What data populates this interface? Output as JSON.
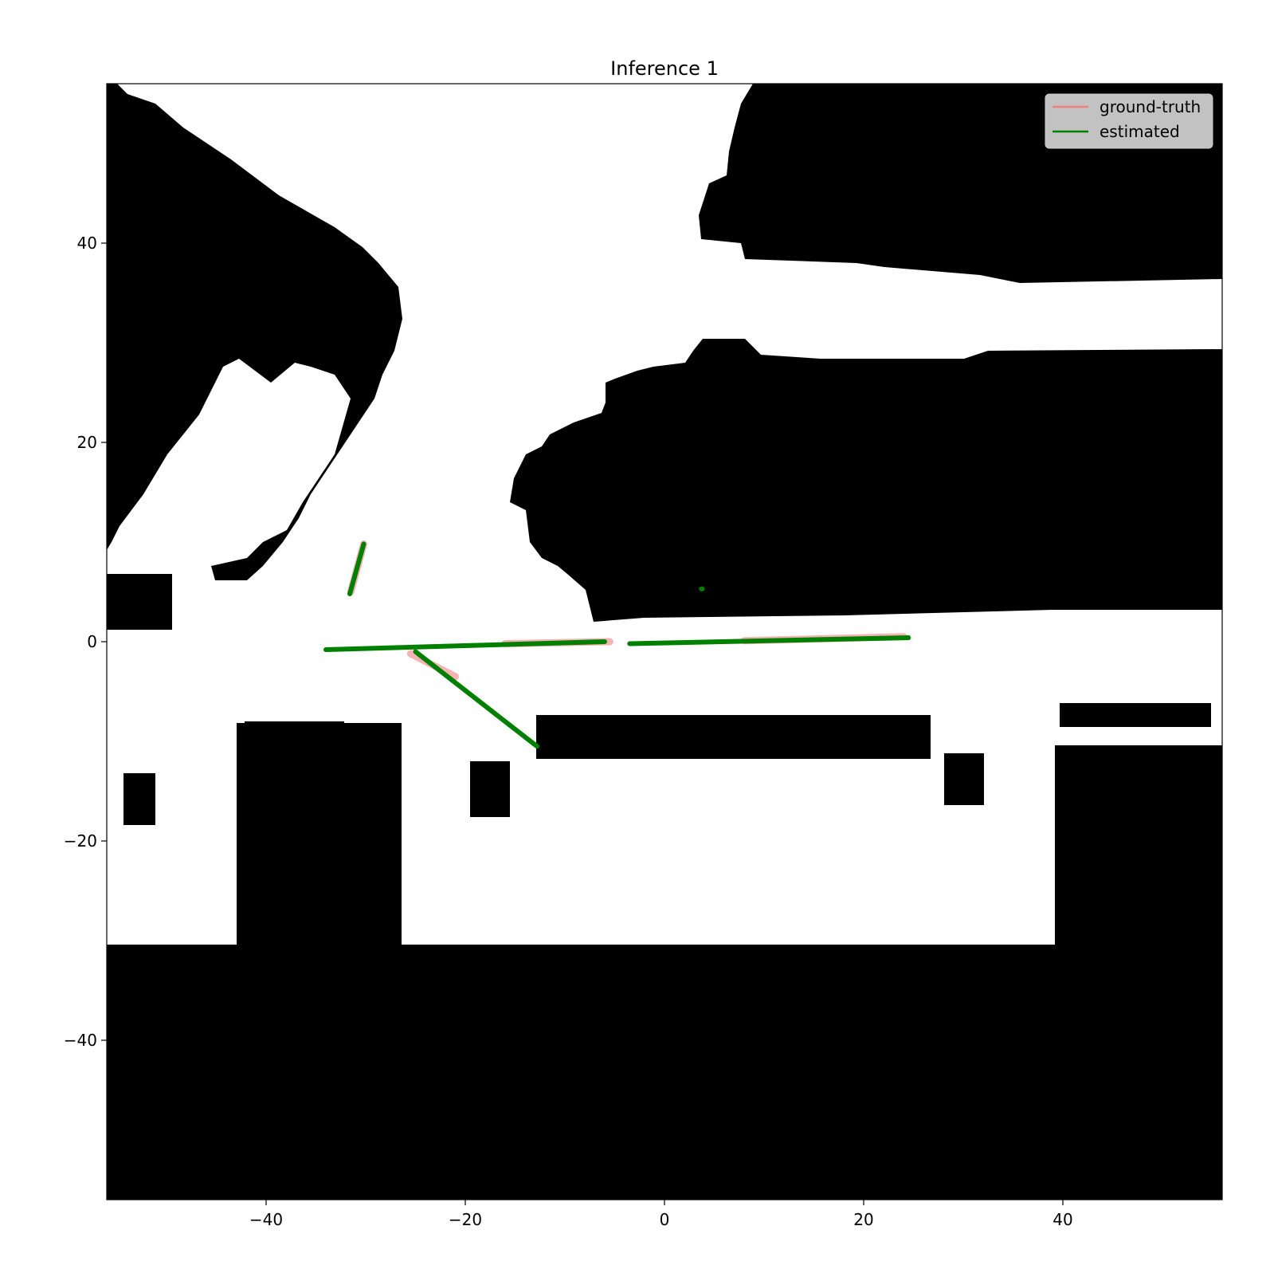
{
  "chart_data": {
    "type": "line",
    "title": "Inference 1",
    "xlabel": "",
    "ylabel": "",
    "xlim": [
      -56,
      56
    ],
    "ylim": [
      -56,
      56
    ],
    "xticks": [
      -40,
      -20,
      0,
      20,
      40
    ],
    "yticks": [
      40,
      20,
      0,
      -20,
      -40
    ],
    "xtick_labels": [
      "−40",
      "−20",
      "0",
      "20",
      "40"
    ],
    "ytick_labels": [
      "40",
      "20",
      "0",
      "−20",
      "−40"
    ],
    "grid": false,
    "legend_position": "top-right",
    "background": "occupancy grid map (black = occupied, white = free)",
    "series": [
      {
        "name": "ground-truth",
        "color": "#f08080",
        "segments": [
          [
            [
              -31.5,
              5
            ],
            [
              -30.2,
              9.8
            ]
          ],
          [
            [
              -25.5,
              -1.2
            ],
            [
              -21,
              -3.5
            ]
          ],
          [
            [
              -16,
              -0.2
            ],
            [
              -5.5,
              0
            ]
          ],
          [
            [
              8,
              0.1
            ],
            [
              24,
              0.5
            ]
          ]
        ]
      },
      {
        "name": "estimated",
        "color": "#008000",
        "segments": [
          [
            [
              -31.6,
              4.8
            ],
            [
              -30.2,
              9.8
            ]
          ],
          [
            [
              -34,
              -0.8
            ],
            [
              -6,
              0
            ]
          ],
          [
            [
              -3.5,
              -0.2
            ],
            [
              24.5,
              0.4
            ]
          ],
          [
            [
              -25,
              -1
            ],
            [
              -12.8,
              -10.5
            ]
          ],
          [
            [
              3.7,
              5.3
            ],
            [
              3.8,
              5.3
            ]
          ]
        ]
      }
    ]
  }
}
